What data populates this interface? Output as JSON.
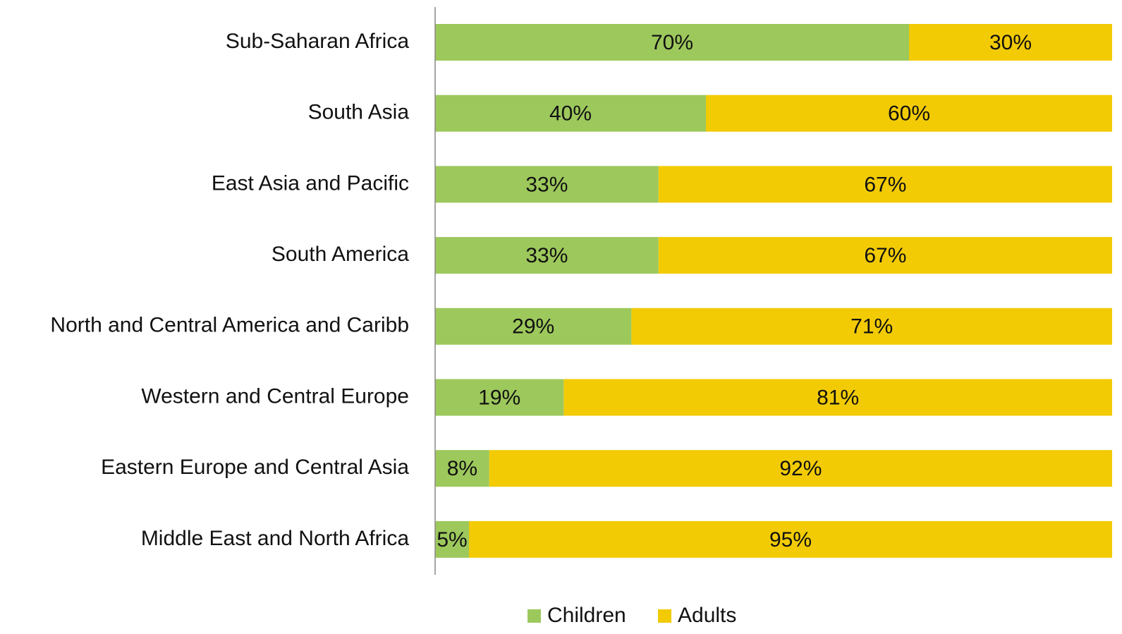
{
  "chart_data": {
    "type": "stacked_barh",
    "categories": [
      "Sub-Saharan Africa",
      "South Asia",
      "East Asia and Pacific",
      "South America",
      "North and Central America and Caribb",
      "Western and Central Europe",
      "Eastern Europe and Central Asia",
      "Middle East and North Africa"
    ],
    "series": [
      {
        "name": "Children",
        "color": "#9dc85c",
        "values": [
          70,
          40,
          33,
          33,
          29,
          19,
          8,
          5
        ],
        "value_labels": [
          "70%",
          "40%",
          "33%",
          "33%",
          "29%",
          "19%",
          "8%",
          "5%"
        ]
      },
      {
        "name": "Adults",
        "color": "#f2cb05",
        "values": [
          30,
          60,
          67,
          67,
          71,
          81,
          92,
          95
        ],
        "value_labels": [
          "30%",
          "60%",
          "67%",
          "67%",
          "71%",
          "81%",
          "92%",
          "95%"
        ]
      }
    ],
    "xlim": [
      0,
      100
    ],
    "legend": "bottom"
  }
}
